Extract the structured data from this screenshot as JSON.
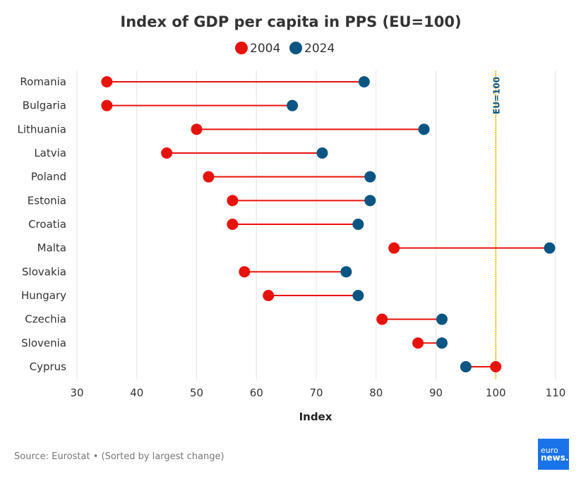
{
  "chart_data": {
    "type": "dumbbell",
    "title": "Index of GDP per capita in PPS (EU=100)",
    "xlabel": "Index",
    "xlim": [
      30,
      110
    ],
    "xticks": [
      30,
      40,
      50,
      60,
      70,
      80,
      90,
      100,
      110
    ],
    "grid": "vertical",
    "legend_position": "top-center",
    "categories": [
      "Romania",
      "Bulgaria",
      "Lithuania",
      "Latvia",
      "Poland",
      "Estonia",
      "Croatia",
      "Malta",
      "Slovakia",
      "Hungary",
      "Czechia",
      "Slovenia",
      "Cyprus"
    ],
    "series": [
      {
        "name": "2004",
        "color": "#e8120c",
        "values": [
          35,
          35,
          50,
          45,
          52,
          56,
          56,
          83,
          58,
          62,
          81,
          87,
          100
        ]
      },
      {
        "name": "2024",
        "color": "#0b5582",
        "values": [
          78,
          66,
          88,
          71,
          79,
          79,
          77,
          109,
          75,
          77,
          91,
          91,
          95
        ]
      }
    ],
    "reference_line": {
      "value": 100,
      "label": "EU=100",
      "color": "#f5c518",
      "label_color": "#0b5582"
    },
    "connector_color": "#e8120c",
    "source": "Source: Eurostat • (Sorted by largest change)"
  },
  "logo": {
    "line1": "euro",
    "line2": "news."
  }
}
